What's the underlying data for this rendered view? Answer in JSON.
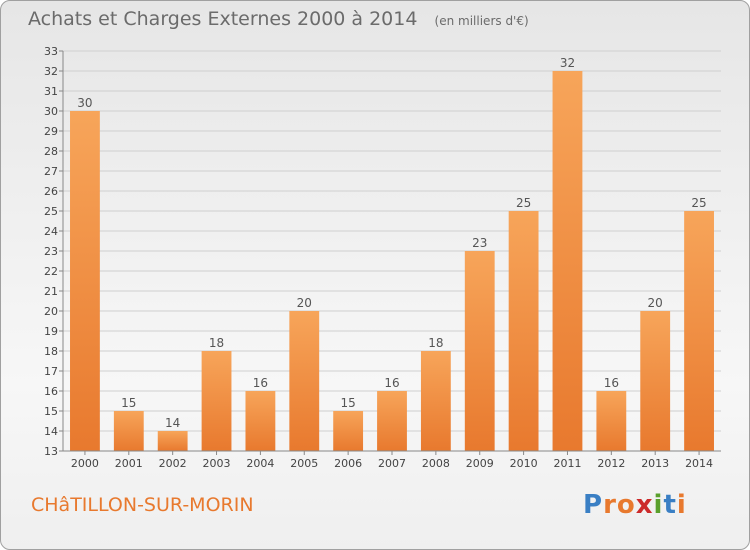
{
  "header": {
    "title": "Achats et Charges Externes 2000 à 2014",
    "unit_note": "(en milliers d'€)"
  },
  "footer": {
    "commune": "CHâTILLON-SUR-MORIN",
    "logo_letters": [
      "P",
      "r",
      "o",
      "x",
      "i",
      "t",
      "i"
    ],
    "logo_colors": [
      "#3a7fc4",
      "#e8792e",
      "#e8792e",
      "#cc2a2a",
      "#5aa02c",
      "#3a7fc4",
      "#e8792e"
    ]
  },
  "chart_data": {
    "type": "bar",
    "title": "Achats et Charges Externes 2000 à 2014",
    "subtitle": "(en milliers d'€)",
    "xlabel": "",
    "ylabel": "",
    "categories": [
      "2000",
      "2001",
      "2002",
      "2003",
      "2004",
      "2005",
      "2006",
      "2007",
      "2008",
      "2009",
      "2010",
      "2011",
      "2012",
      "2013",
      "2014"
    ],
    "values": [
      30,
      15,
      14,
      18,
      16,
      20,
      15,
      16,
      18,
      23,
      25,
      32,
      16,
      20,
      25
    ],
    "ylim": [
      13,
      33
    ],
    "yticks": [
      13,
      14,
      15,
      16,
      17,
      18,
      19,
      20,
      21,
      22,
      23,
      24,
      25,
      26,
      27,
      28,
      29,
      30,
      31,
      32,
      33
    ],
    "grid": true,
    "legend": "none",
    "bar_color": "#e8792e",
    "bar_color_light": "#f7a55a"
  }
}
